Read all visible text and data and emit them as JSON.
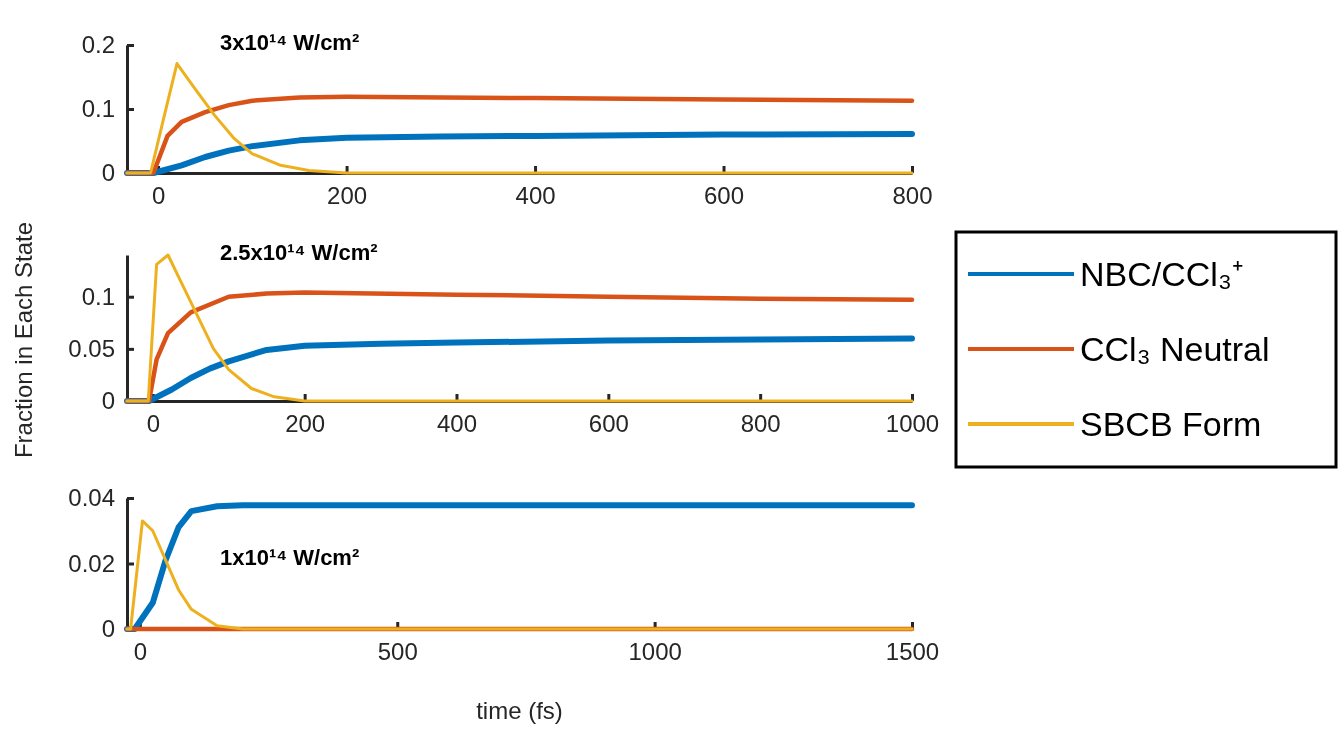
{
  "chart_data": [
    {
      "type": "line",
      "title": "3x10¹⁴ W/cm²",
      "xlim": [
        -33,
        800
      ],
      "xticks": [
        0,
        200,
        400,
        600,
        800
      ],
      "ylim": [
        0,
        0.2
      ],
      "yticks": [
        0,
        0.1,
        0.2
      ],
      "grid": false,
      "legend": false,
      "line_style": "solid",
      "marker": "none",
      "series": [
        {
          "color": "#0072bd",
          "x": [
            -33,
            -5,
            25,
            50,
            75,
            100,
            150,
            200,
            300,
            400,
            600,
            800
          ],
          "values": [
            0,
            0,
            0.012,
            0.025,
            0.035,
            0.042,
            0.051,
            0.055,
            0.057,
            0.058,
            0.06,
            0.061
          ]
        },
        {
          "color": "#d95319",
          "x": [
            -33,
            -5,
            10,
            25,
            50,
            75,
            100,
            150,
            200,
            400,
            600,
            800
          ],
          "values": [
            0,
            0,
            0.058,
            0.08,
            0.095,
            0.106,
            0.113,
            0.118,
            0.119,
            0.117,
            0.115,
            0.113
          ]
        },
        {
          "color": "#edb120",
          "x": [
            -33,
            -8,
            5,
            20,
            40,
            60,
            80,
            100,
            130,
            160,
            200,
            800
          ],
          "values": [
            0,
            0,
            0.08,
            0.171,
            0.13,
            0.09,
            0.055,
            0.03,
            0.012,
            0.004,
            0,
            0
          ]
        }
      ]
    },
    {
      "type": "line",
      "title": "2.5x10¹⁴ W/cm²",
      "ylabel": "Fraction in Each State",
      "xlim": [
        -34,
        1000
      ],
      "xticks": [
        0,
        200,
        400,
        600,
        800,
        1000
      ],
      "ylim": [
        0,
        0.14
      ],
      "yticks": [
        0,
        0.05,
        0.1
      ],
      "grid": false,
      "legend": "right",
      "line_style": "solid",
      "marker": "none",
      "series": [
        {
          "name": "NBC/CCl₃⁺",
          "color": "#0072bd",
          "x": [
            -34,
            -5,
            25,
            50,
            75,
            100,
            150,
            200,
            300,
            400,
            600,
            800,
            1000
          ],
          "values": [
            0,
            0,
            0.011,
            0.022,
            0.031,
            0.038,
            0.049,
            0.053,
            0.055,
            0.056,
            0.058,
            0.059,
            0.06
          ]
        },
        {
          "name": "CCl₃ Neutral",
          "color": "#d95319",
          "x": [
            -34,
            -5,
            5,
            20,
            50,
            100,
            150,
            200,
            400,
            600,
            800,
            1000
          ],
          "values": [
            0,
            0,
            0.04,
            0.065,
            0.085,
            0.1,
            0.103,
            0.104,
            0.102,
            0.1,
            0.098,
            0.097
          ]
        },
        {
          "name": "SBCB Form",
          "color": "#edb120",
          "x": [
            -34,
            -6,
            5,
            20,
            40,
            60,
            80,
            100,
            130,
            160,
            200,
            1000
          ],
          "values": [
            0,
            0,
            0.131,
            0.14,
            0.11,
            0.08,
            0.05,
            0.03,
            0.012,
            0.004,
            0,
            0
          ]
        }
      ]
    },
    {
      "type": "line",
      "title": "1x10¹⁴ W/cm²",
      "xlabel": "time (fs)",
      "xlim": [
        -25,
        1500
      ],
      "xticks": [
        0,
        500,
        1000,
        1500
      ],
      "ylim": [
        0,
        0.04
      ],
      "yticks": [
        0,
        0.02,
        0.04
      ],
      "grid": false,
      "legend": false,
      "line_style": "solid",
      "marker": "none",
      "series": [
        {
          "color": "#0072bd",
          "x": [
            -25,
            -10,
            25,
            50,
            75,
            100,
            150,
            200,
            1500
          ],
          "values": [
            0,
            0,
            0.008,
            0.021,
            0.031,
            0.036,
            0.0375,
            0.0378,
            0.0378
          ]
        },
        {
          "color": "#d95319",
          "x": [
            -25,
            1500
          ],
          "values": [
            0,
            0
          ]
        },
        {
          "color": "#edb120",
          "x": [
            -25,
            -18,
            5,
            25,
            50,
            75,
            100,
            150,
            200,
            1500
          ],
          "values": [
            0,
            0,
            0.033,
            0.03,
            0.021,
            0.012,
            0.006,
            0.001,
            0,
            0
          ]
        }
      ]
    }
  ]
}
